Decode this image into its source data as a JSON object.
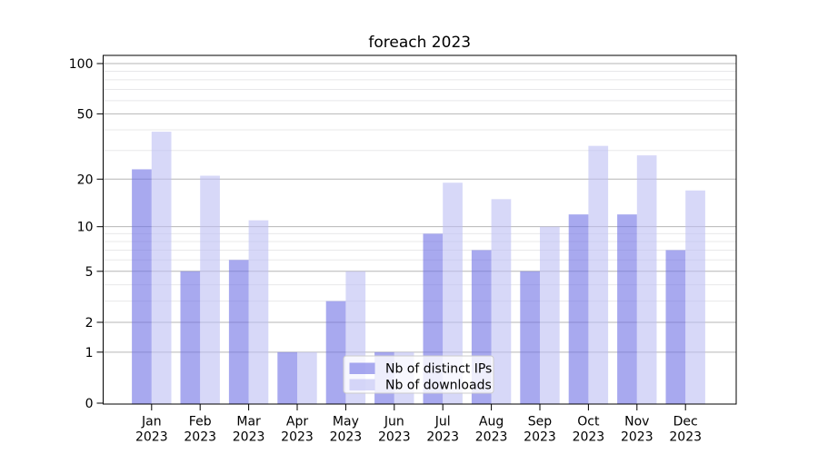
{
  "title": "foreach 2023",
  "y_axis": {
    "tick_labels": [
      "100",
      "50",
      "20",
      "10",
      "5",
      "2",
      "1",
      "0"
    ],
    "tick_values": [
      100,
      50,
      20,
      10,
      5,
      2,
      1,
      0
    ],
    "minor_values": [
      3,
      4,
      6,
      7,
      8,
      9,
      30,
      40,
      60,
      70,
      80,
      90
    ]
  },
  "x_axis": {
    "months": [
      "Jan",
      "Feb",
      "Mar",
      "Apr",
      "May",
      "Jun",
      "Jul",
      "Aug",
      "Sep",
      "Oct",
      "Nov",
      "Dec"
    ],
    "year": "2023"
  },
  "legend": {
    "items": [
      {
        "label": "Nb of distinct IPs"
      },
      {
        "label": "Nb of downloads"
      }
    ]
  },
  "colors": {
    "distinct_ips_bar": "#a8a9ef",
    "downloads_bar": "#d7d8f7",
    "distinct_ips_fill": "rgba(110,112,228,0.6)",
    "downloads_fill": "rgba(188,190,243,0.6)",
    "major_grid": "#b6b6b6",
    "minor_grid": "#e8e8ea",
    "axis": "#000000",
    "legend_border": "#cccccc"
  },
  "chart_data": {
    "type": "bar",
    "title": "foreach 2023",
    "categories": [
      "Jan 2023",
      "Feb 2023",
      "Mar 2023",
      "Apr 2023",
      "May 2023",
      "Jun 2023",
      "Jul 2023",
      "Aug 2023",
      "Sep 2023",
      "Oct 2023",
      "Nov 2023",
      "Dec 2023"
    ],
    "series": [
      {
        "name": "Nb of distinct IPs",
        "values": [
          23,
          5,
          6,
          1,
          3,
          1,
          9,
          7,
          5,
          12,
          12,
          7
        ]
      },
      {
        "name": "Nb of downloads",
        "values": [
          39,
          21,
          11,
          1,
          5,
          1,
          19,
          15,
          10,
          32,
          28,
          17
        ]
      }
    ],
    "yscale": "log1p",
    "ylim": [
      0,
      112
    ],
    "yticks": [
      0,
      1,
      2,
      5,
      10,
      20,
      50,
      100
    ],
    "xlabel": "",
    "ylabel": "",
    "grid": true,
    "legend_position": "lower center"
  }
}
